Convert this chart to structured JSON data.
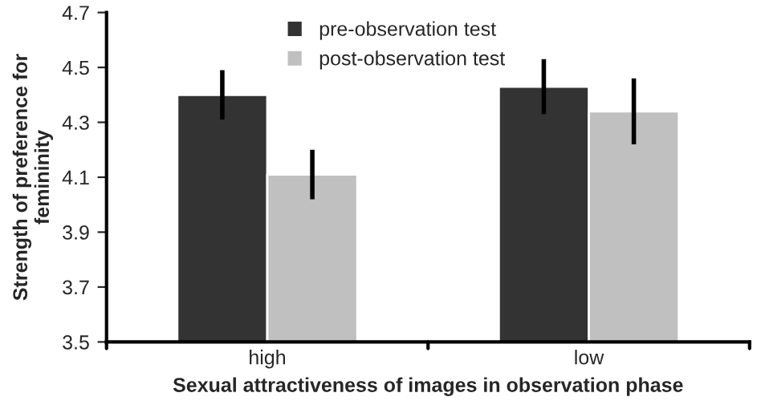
{
  "chart_data": {
    "type": "bar",
    "xlabel": "Sexual attractiveness of images in observation phase",
    "ylabel": "Strength of preference for\nfemininity",
    "categories": [
      "high",
      "low"
    ],
    "series": [
      {
        "name": "pre-observation test",
        "color": "#333333",
        "values": [
          4.4,
          4.43
        ],
        "errors": [
          0.09,
          0.1
        ]
      },
      {
        "name": "post-observation test",
        "color": "#c0c0c0",
        "values": [
          4.11,
          4.34
        ],
        "errors": [
          0.09,
          0.12
        ]
      }
    ],
    "ylim": [
      3.5,
      4.7
    ],
    "yticks": [
      3.5,
      3.7,
      3.9,
      4.1,
      4.3,
      4.5,
      4.7
    ],
    "grid": false,
    "legend": "top"
  }
}
